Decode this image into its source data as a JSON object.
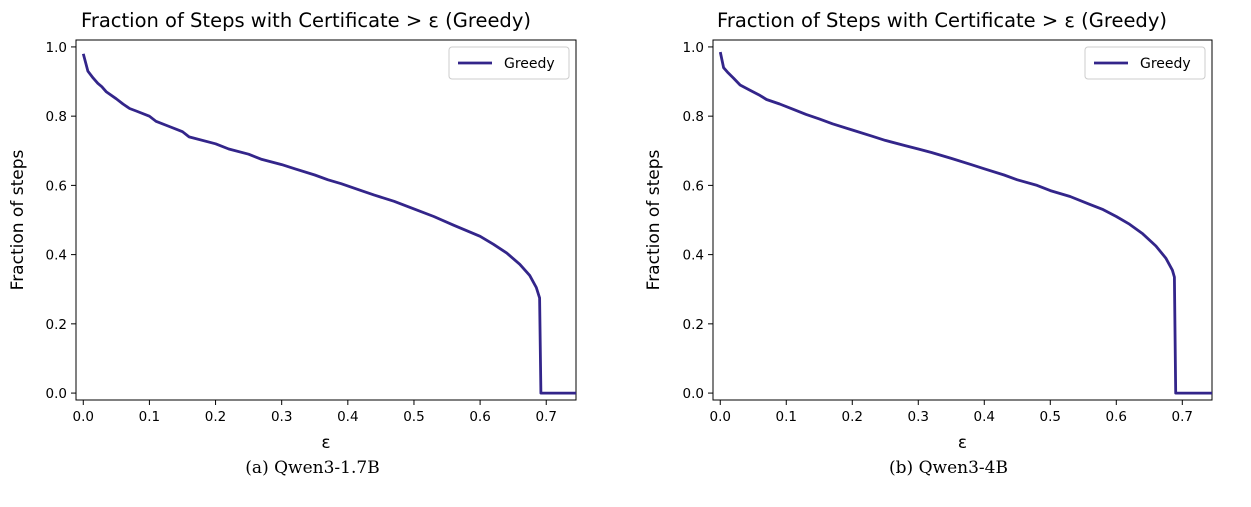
{
  "chart_data": [
    {
      "type": "line",
      "title": "Fraction of Steps with Certificate > ε  (Greedy)",
      "xlabel": "ε",
      "ylabel": "Fraction of steps",
      "xlim": [
        -0.011,
        0.745
      ],
      "ylim": [
        -0.02,
        1.02
      ],
      "xticks": [
        "0.0",
        "0.1",
        "0.2",
        "0.3",
        "0.4",
        "0.5",
        "0.6",
        "0.7"
      ],
      "yticks": [
        "0.0",
        "0.2",
        "0.4",
        "0.6",
        "0.8",
        "1.0"
      ],
      "grid": false,
      "legend_position": "top-right",
      "caption": "(a) Qwen3-1.7B",
      "series": [
        {
          "name": "Greedy",
          "color": "#33258a",
          "x": [
            0.0,
            0.007,
            0.015,
            0.022,
            0.028,
            0.035,
            0.05,
            0.06,
            0.07,
            0.08,
            0.1,
            0.11,
            0.13,
            0.15,
            0.16,
            0.2,
            0.22,
            0.25,
            0.27,
            0.3,
            0.32,
            0.35,
            0.37,
            0.39,
            0.42,
            0.44,
            0.47,
            0.5,
            0.53,
            0.56,
            0.6,
            0.62,
            0.64,
            0.66,
            0.675,
            0.685,
            0.69,
            0.692,
            0.745
          ],
          "y": [
            0.98,
            0.93,
            0.91,
            0.895,
            0.885,
            0.87,
            0.85,
            0.835,
            0.822,
            0.815,
            0.8,
            0.785,
            0.77,
            0.755,
            0.74,
            0.72,
            0.705,
            0.69,
            0.675,
            0.66,
            0.648,
            0.63,
            0.616,
            0.605,
            0.585,
            0.572,
            0.554,
            0.532,
            0.51,
            0.485,
            0.453,
            0.43,
            0.405,
            0.372,
            0.34,
            0.305,
            0.275,
            0.0,
            0.0
          ]
        }
      ]
    },
    {
      "type": "line",
      "title": "Fraction of Steps with Certificate > ε  (Greedy)",
      "xlabel": "ε",
      "ylabel": "Fraction of steps",
      "xlim": [
        -0.011,
        0.745
      ],
      "ylim": [
        -0.02,
        1.02
      ],
      "xticks": [
        "0.0",
        "0.1",
        "0.2",
        "0.3",
        "0.4",
        "0.5",
        "0.6",
        "0.7"
      ],
      "yticks": [
        "0.0",
        "0.2",
        "0.4",
        "0.6",
        "0.8",
        "1.0"
      ],
      "grid": false,
      "legend_position": "top-right",
      "caption": "(b) Qwen3-4B",
      "series": [
        {
          "name": "Greedy",
          "color": "#33258a",
          "x": [
            0.0,
            0.005,
            0.012,
            0.02,
            0.03,
            0.045,
            0.06,
            0.07,
            0.09,
            0.11,
            0.13,
            0.15,
            0.17,
            0.2,
            0.23,
            0.25,
            0.28,
            0.3,
            0.32,
            0.35,
            0.38,
            0.4,
            0.43,
            0.45,
            0.48,
            0.5,
            0.53,
            0.56,
            0.58,
            0.6,
            0.62,
            0.64,
            0.66,
            0.675,
            0.685,
            0.688,
            0.69,
            0.745
          ],
          "y": [
            0.985,
            0.94,
            0.925,
            0.91,
            0.89,
            0.875,
            0.86,
            0.848,
            0.835,
            0.82,
            0.805,
            0.792,
            0.778,
            0.76,
            0.742,
            0.73,
            0.715,
            0.705,
            0.695,
            0.678,
            0.66,
            0.648,
            0.63,
            0.616,
            0.6,
            0.585,
            0.568,
            0.545,
            0.53,
            0.51,
            0.488,
            0.46,
            0.425,
            0.39,
            0.355,
            0.335,
            0.0,
            0.0
          ]
        }
      ]
    }
  ]
}
